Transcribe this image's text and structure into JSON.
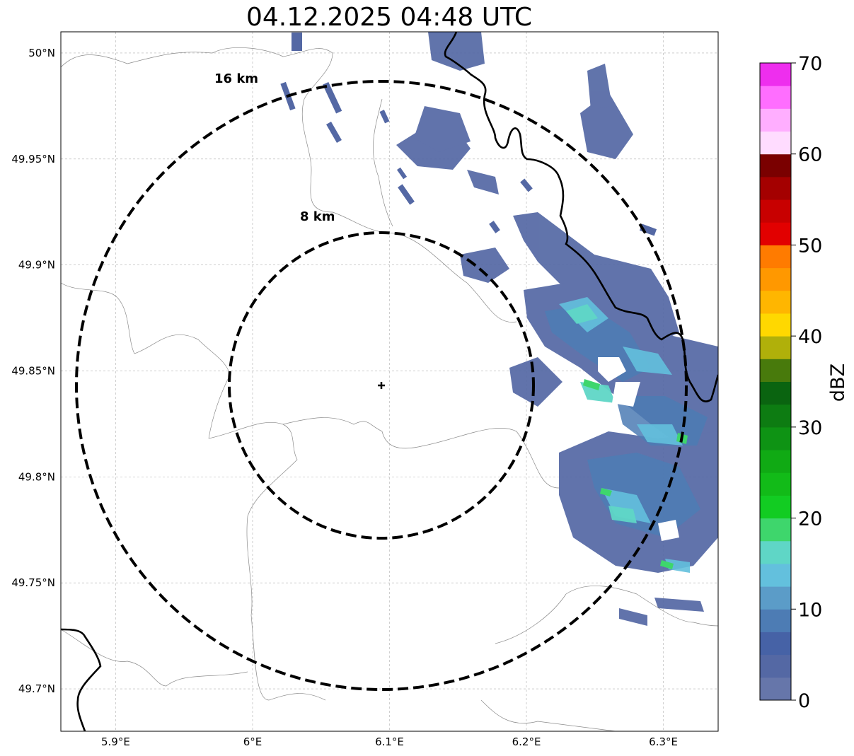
{
  "title": "04.12.2025 04:48 UTC",
  "map": {
    "lon_range": [
      5.86,
      6.34
    ],
    "lat_range": [
      49.68,
      50.01
    ],
    "radar_site": {
      "lon": 6.095,
      "lat": 49.843
    },
    "lat_ticks": [
      {
        "value": 50.0,
        "label": "50°N"
      },
      {
        "value": 49.95,
        "label": "49.95°N"
      },
      {
        "value": 49.9,
        "label": "49.9°N"
      },
      {
        "value": 49.85,
        "label": "49.85°N"
      },
      {
        "value": 49.8,
        "label": "49.8°N"
      },
      {
        "value": 49.75,
        "label": "49.75°N"
      },
      {
        "value": 49.7,
        "label": "49.7°N"
      }
    ],
    "lon_ticks": [
      {
        "value": 5.9,
        "label": "5.9°E"
      },
      {
        "value": 6.0,
        "label": "6°E"
      },
      {
        "value": 6.1,
        "label": "6.1°E"
      },
      {
        "value": 6.2,
        "label": "6.2°E"
      },
      {
        "value": 6.3,
        "label": "6.3°E"
      }
    ],
    "range_rings": [
      {
        "km": 8,
        "label": "8 km"
      },
      {
        "km": 16,
        "label": "16 km"
      }
    ]
  },
  "colorbar": {
    "label": "dBZ",
    "ticks": [
      "0",
      "10",
      "20",
      "30",
      "40",
      "50",
      "60",
      "70"
    ],
    "colors": [
      "#6676aa",
      "#5468a4",
      "#4662a6",
      "#4d7cb4",
      "#5b9cc8",
      "#63c0dd",
      "#5fd6c6",
      "#3ed66c",
      "#12cc22",
      "#12bb18",
      "#10aa14",
      "#0e9314",
      "#0d7c12",
      "#0a6410",
      "#487a0c",
      "#b0b00a",
      "#ffd800",
      "#ffb600",
      "#ff9800",
      "#ff7b00",
      "#e20000",
      "#c80000",
      "#a40000",
      "#7a0000",
      "#ffdcff",
      "#ffaeff",
      "#ff6eff",
      "#ee2eee"
    ]
  }
}
